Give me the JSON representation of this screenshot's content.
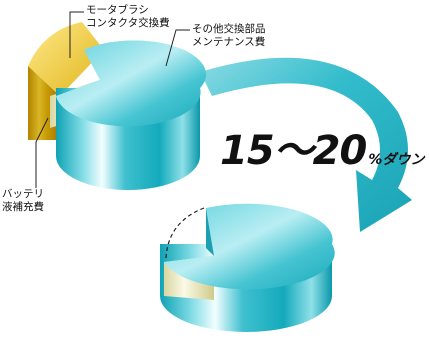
{
  "labels": {
    "motor_brush": [
      "モータブラシ",
      "コンタクタ交換費"
    ],
    "other_parts": [
      "その他交換部品",
      "メンテナンス費"
    ],
    "battery": [
      "バッテリ",
      "液補充費"
    ]
  },
  "headline": {
    "big": "15～20",
    "small": "%ダウン"
  },
  "colors": {
    "teal": "#1fb6c6",
    "teal_light": "#c8f2f6",
    "gold": "#d6a600",
    "gold_light": "#fff2a8",
    "cream": "#f3f1cf",
    "arrow": "#32bccb"
  }
}
